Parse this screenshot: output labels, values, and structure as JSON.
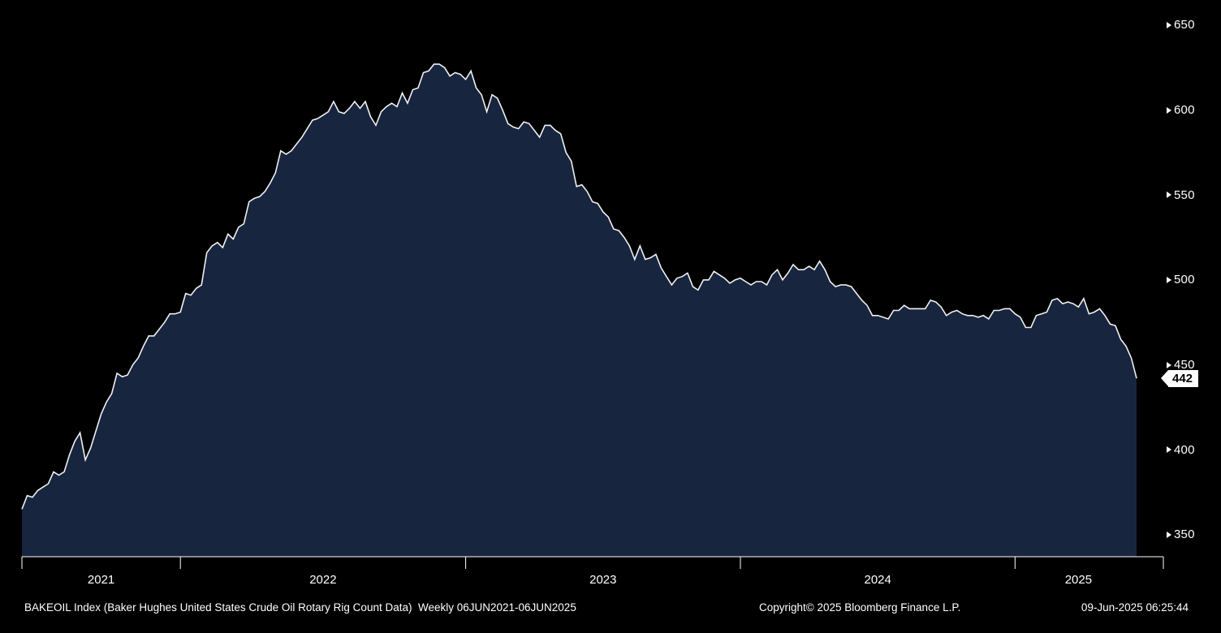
{
  "colors": {
    "background": "#000000",
    "area_fill": "#17253f",
    "line": "#f0f0f0",
    "axis_text": "#ffffff",
    "badge_bg": "#ffffff",
    "badge_text": "#000000"
  },
  "footer": {
    "left": "BAKEOIL Index (Baker Hughes United States Crude Oil Rotary Rig Count Data)  Weekly 06JUN2021-06JUN2025",
    "center": "Copyright© 2025 Bloomberg Finance L.P.",
    "right": "09-Jun-2025 06:25:44"
  },
  "chart_data": {
    "type": "area",
    "title": "BAKEOIL Index (Baker Hughes United States Crude Oil Rotary Rig Count Data)",
    "frequency": "Weekly",
    "range": "06JUN2021-06JUN2025",
    "last_value": 442,
    "last_value_label": "442",
    "ylim": [
      337,
      660
    ],
    "yticks": [
      350,
      400,
      450,
      500,
      550,
      600,
      650
    ],
    "grid": false,
    "legend": "none",
    "x_axis_years": [
      "2021",
      "2022",
      "2023",
      "2024",
      "2025"
    ],
    "year_order": [
      "2021",
      "2022",
      "2023",
      "2024",
      "2025"
    ],
    "series_by_year": {
      "2021": [
        365,
        373,
        372,
        376,
        378,
        380,
        387,
        385,
        387,
        397,
        405,
        410,
        394,
        401,
        411,
        421,
        428,
        433,
        445,
        443,
        444,
        450,
        454,
        461,
        467,
        467,
        471,
        475,
        480,
        480
      ],
      "2022": [
        481,
        492,
        491,
        495,
        497,
        516,
        520,
        522,
        519,
        527,
        524,
        531,
        533,
        546,
        548,
        549,
        552,
        557,
        563,
        576,
        574,
        576,
        580,
        584,
        589,
        594,
        595,
        597,
        599,
        605,
        599,
        598,
        601,
        605,
        601,
        605,
        596,
        591,
        599,
        602,
        604,
        602,
        610,
        604,
        612,
        613,
        622,
        623,
        627,
        627,
        625,
        620,
        622,
        621
      ],
      "2023": [
        618,
        623,
        613,
        609,
        599,
        609,
        607,
        600,
        592,
        590,
        589,
        593,
        592,
        588,
        584,
        591,
        591,
        588,
        586,
        575,
        570,
        555,
        556,
        552,
        546,
        545,
        540,
        537,
        530,
        529,
        525,
        520,
        512,
        520,
        512,
        513,
        515,
        507,
        502,
        497,
        501,
        502,
        504,
        496,
        494,
        500,
        500,
        505,
        503,
        501,
        498,
        500
      ],
      "2024": [
        501,
        499,
        497,
        499,
        499,
        497,
        503,
        506,
        500,
        504,
        509,
        506,
        506,
        508,
        506,
        511,
        506,
        499,
        496,
        497,
        497,
        496,
        492,
        488,
        485,
        479,
        479,
        478,
        477,
        482,
        482,
        485,
        483,
        483,
        483,
        483,
        488,
        487,
        484,
        479,
        481,
        482,
        480,
        479,
        479,
        478,
        479,
        477,
        482,
        482,
        483,
        483
      ],
      "2025": [
        480,
        478,
        472,
        472,
        479,
        480,
        481,
        488,
        489,
        486,
        487,
        486,
        484,
        489,
        480,
        481,
        483,
        479,
        474,
        473,
        465,
        461,
        454,
        442
      ]
    }
  }
}
